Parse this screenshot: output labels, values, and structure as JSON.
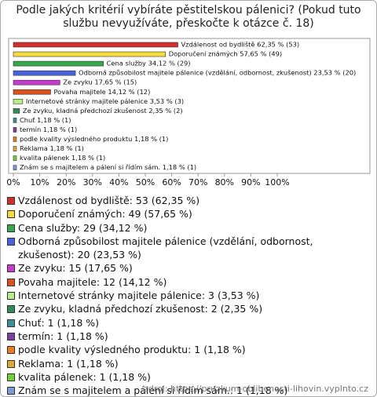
{
  "chart_data": {
    "type": "hbar",
    "title": "Podle jakých kritérií vybíráte pěstitelskou pálenici? (Pokud tuto službu nevyužíváte, přeskočte k otázce č. 18)",
    "categories": [
      "Vzdálenost od bydliště",
      "Doporučení známých",
      "Cena služby",
      "Odborná způsobilost majitele pálenice (vzdělání, odbornost, zkušenost)",
      "Ze zvyku",
      "Povaha majitele",
      "Internetové stránky majitele pálenice",
      "Ze zvyku, kladná předchozí zkušenost",
      "Chuť",
      "termín",
      "podle kvality výsledného produktu",
      "Reklama",
      "kvalita pálenek",
      "Znám se s majitelem a pálení si řídím sám."
    ],
    "values": [
      62.35,
      57.65,
      34.12,
      23.53,
      17.65,
      14.12,
      3.53,
      2.35,
      1.18,
      1.18,
      1.18,
      1.18,
      1.18,
      1.18
    ],
    "counts": [
      53,
      49,
      29,
      20,
      15,
      12,
      3,
      2,
      1,
      1,
      1,
      1,
      1,
      1
    ],
    "value_labels": [
      "Vzdálenost od bydliště 62,35 % (53)",
      "Doporučení známých 57,65 % (49)",
      "Cena služby 34,12 % (29)",
      "Odborná způsobilost majitele pálenice (vzdělání, odbornost, zkušenost) 23,53 % (20)",
      "Ze zvyku 17,65 % (15)",
      "Povaha majitele 14,12 % (12)",
      "Internetové stránky majitele pálenice 3,53 % (3)",
      "Ze zvyku, kladná předchozí zkušenost 2,35 % (2)",
      "Chuť 1,18 % (1)",
      "termín 1,18 % (1)",
      "podle kvality výsledného produktu 1,18 % (1)",
      "Reklama 1,18 % (1)",
      "kvalita pálenek 1,18 % (1)",
      "Znám se s majitelem a pálení si řídím sám. 1,18 % (1)"
    ],
    "legend_labels": [
      "Vzdálenost od bydliště: 53 (62,35 %)",
      "Doporučení známých: 49 (57,65 %)",
      "Cena služby: 29 (34,12 %)",
      "Odborná způsobilost majitele pálenice (vzdělání, odbornost, zkušenost): 20 (23,53 %)",
      "Ze zvyku: 15 (17,65 %)",
      "Povaha majitele: 12 (14,12 %)",
      "Internetové stránky majitele pálenice: 3 (3,53 %)",
      "Ze zvyku, kladná předchozí zkušenost: 2 (2,35 %)",
      "Chuť: 1 (1,18 %)",
      "termín: 1 (1,18 %)",
      "podle kvality výsledného produktu: 1 (1,18 %)",
      "Reklama: 1 (1,18 %)",
      "kvalita pálenek: 1 (1,18 %)",
      "Znám se s majitelem a pálení si řídím sám.: 1 (1,18 %)"
    ],
    "colors": [
      "#d22f2f",
      "#f5dc3c",
      "#34a84a",
      "#4a63d8",
      "#c43ccf",
      "#d9531e",
      "#b6ef8a",
      "#2f8a58",
      "#3f8d95",
      "#7a3f9d",
      "#e67e22",
      "#e0a83a",
      "#6fd03a",
      "#7d9ad6"
    ],
    "xlim": [
      0,
      100
    ],
    "xticks": [
      {
        "value": 0,
        "label": "0%"
      },
      {
        "value": 10,
        "label": "10%"
      },
      {
        "value": 20,
        "label": "20%"
      },
      {
        "value": 30,
        "label": "30%"
      },
      {
        "value": 40,
        "label": "40%"
      },
      {
        "value": 50,
        "label": "50%"
      },
      {
        "value": 60,
        "label": "60%"
      },
      {
        "value": 70,
        "label": "70%"
      },
      {
        "value": 80,
        "label": "80%"
      },
      {
        "value": 90,
        "label": "90%"
      },
      {
        "value": 100,
        "label": "100%"
      }
    ],
    "source": "zdroj: https://pruzkum-oblibenosti-lihovin.vyplnto.cz"
  }
}
